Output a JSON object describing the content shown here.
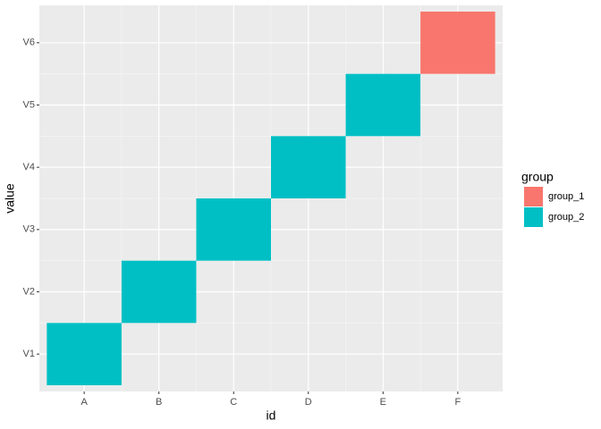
{
  "chart_data": {
    "type": "tile",
    "x_label": "id",
    "y_label": "value",
    "categories": [
      "A",
      "B",
      "C",
      "D",
      "E",
      "F"
    ],
    "y_categories": [
      "V1",
      "V2",
      "V3",
      "V4",
      "V5",
      "V6"
    ],
    "legend_title": "group",
    "groups": [
      {
        "name": "group_1",
        "color": "#F8766D"
      },
      {
        "name": "group_2",
        "color": "#00BFC4"
      }
    ],
    "tiles": [
      {
        "x": "A",
        "y": "V1",
        "group": "group_2"
      },
      {
        "x": "B",
        "y": "V2",
        "group": "group_2"
      },
      {
        "x": "C",
        "y": "V3",
        "group": "group_2"
      },
      {
        "x": "D",
        "y": "V4",
        "group": "group_2"
      },
      {
        "x": "E",
        "y": "V5",
        "group": "group_2"
      },
      {
        "x": "F",
        "y": "V6",
        "group": "group_1"
      }
    ],
    "grid": true
  }
}
